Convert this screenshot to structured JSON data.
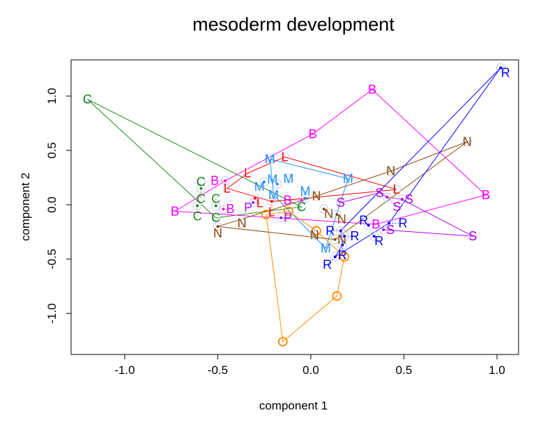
{
  "chart_data": {
    "type": "scatter",
    "title": "mesoderm development",
    "xlabel": "component 1",
    "ylabel": "component 2",
    "xlim": [
      -1.288,
      1.116
    ],
    "ylim": [
      -1.378,
      1.333
    ],
    "xticks": [
      -1.0,
      -0.5,
      0.0,
      0.5,
      1.0
    ],
    "xtick_labels": [
      "-1.0",
      "-0.5",
      "0.0",
      "0.5",
      "1.0"
    ],
    "yticks": [
      -1.0,
      -0.5,
      0.0,
      0.5,
      1.0
    ],
    "ytick_labels": [
      "-1.0",
      "-0.5",
      "0.0",
      "0.5",
      "1.0"
    ],
    "grid": false,
    "series": [
      {
        "name": "C",
        "color": "#1a8a1a",
        "marker": "C",
        "points": [
          [
            -1.2,
            0.97
          ],
          [
            -0.05,
            -0.02
          ],
          [
            -0.51,
            -0.12
          ],
          [
            -0.59,
            0.21
          ],
          [
            -0.59,
            0.15
          ],
          [
            -0.61,
            -0.01
          ],
          [
            -0.51,
            -0.01
          ]
        ],
        "path": [
          0,
          1,
          2,
          0
        ]
      },
      {
        "name": "M",
        "color": "#1e8fff",
        "marker": "M",
        "points": [
          [
            -0.22,
            0.42
          ],
          [
            0.2,
            0.24
          ],
          [
            0.08,
            -0.4
          ],
          [
            -0.2,
            0.09
          ],
          [
            -0.25,
            0.21
          ],
          [
            -0.18,
            0.19
          ],
          [
            -0.12,
            0.24
          ],
          [
            -0.03,
            0.06
          ]
        ],
        "path": [
          0,
          1,
          2,
          3,
          0
        ]
      },
      {
        "name": "L",
        "color": "#ff0000",
        "marker": "L",
        "points": [
          [
            -0.14,
            0.44
          ],
          [
            0.46,
            0.14
          ],
          [
            -0.21,
            0.03
          ],
          [
            -0.45,
            0.15
          ],
          [
            -0.34,
            0.29
          ],
          [
            -0.3,
            0.06
          ]
        ],
        "path": [
          0,
          1,
          2,
          3,
          4,
          0
        ]
      },
      {
        "name": "B",
        "color": "#ff00ff",
        "marker": "B",
        "points": [
          [
            -0.73,
            -0.06
          ],
          [
            -0.46,
            0.22
          ],
          [
            0.01,
            0.65
          ],
          [
            0.33,
            1.06
          ],
          [
            0.94,
            0.09
          ],
          [
            0.35,
            -0.18
          ],
          [
            -0.47,
            -0.04
          ],
          [
            -0.05,
            0.04
          ]
        ],
        "path": [
          0,
          1,
          2,
          3,
          4,
          5,
          0
        ]
      },
      {
        "name": "P",
        "color": "#9a1cf0",
        "marker": "P",
        "points": [
          [
            -0.31,
            0.02
          ],
          [
            -0.16,
            -0.12
          ]
        ],
        "path": []
      },
      {
        "name": "S",
        "color": "#b400e6",
        "marker": "S",
        "points": [
          [
            0.16,
            0.02
          ],
          [
            0.37,
            0.11
          ],
          [
            0.41,
            0.07
          ],
          [
            0.49,
            0.05
          ],
          [
            0.87,
            -0.29
          ],
          [
            0.39,
            -0.23
          ]
        ],
        "path": [
          0,
          1,
          2,
          3,
          4,
          5
        ]
      },
      {
        "name": "N",
        "color": "#8b4a0b",
        "marker": "N",
        "points": [
          [
            0.03,
            0.08
          ],
          [
            0.43,
            0.31
          ],
          [
            0.84,
            0.58
          ],
          [
            0.13,
            -0.32
          ],
          [
            -0.5,
            -0.2
          ],
          [
            -0.37,
            -0.17
          ],
          [
            0.07,
            -0.04
          ],
          [
            0.14,
            -0.09
          ],
          [
            0.02,
            -0.28
          ]
        ],
        "path": [
          0,
          1,
          2,
          3,
          4,
          0
        ]
      },
      {
        "name": "R",
        "color": "#0000ff",
        "marker": "R",
        "points": [
          [
            1.02,
            1.26
          ],
          [
            0.16,
            -0.24
          ],
          [
            0.18,
            -0.29
          ],
          [
            0.17,
            -0.37
          ],
          [
            0.31,
            -0.19
          ],
          [
            0.34,
            -0.29
          ],
          [
            0.42,
            -0.17
          ],
          [
            0.13,
            -0.48
          ]
        ],
        "path": [
          0,
          1,
          3,
          7,
          6,
          0
        ]
      },
      {
        "name": "O",
        "color": "#ff8c00",
        "marker": "circle",
        "points": [
          [
            -0.12,
            -0.06
          ],
          [
            0.03,
            -0.24
          ],
          [
            0.18,
            -0.48
          ],
          [
            0.14,
            -0.84
          ],
          [
            -0.15,
            -1.26
          ],
          [
            -0.24,
            -0.09
          ]
        ],
        "path": [
          0,
          1,
          2,
          3,
          4,
          5,
          0
        ]
      }
    ]
  }
}
